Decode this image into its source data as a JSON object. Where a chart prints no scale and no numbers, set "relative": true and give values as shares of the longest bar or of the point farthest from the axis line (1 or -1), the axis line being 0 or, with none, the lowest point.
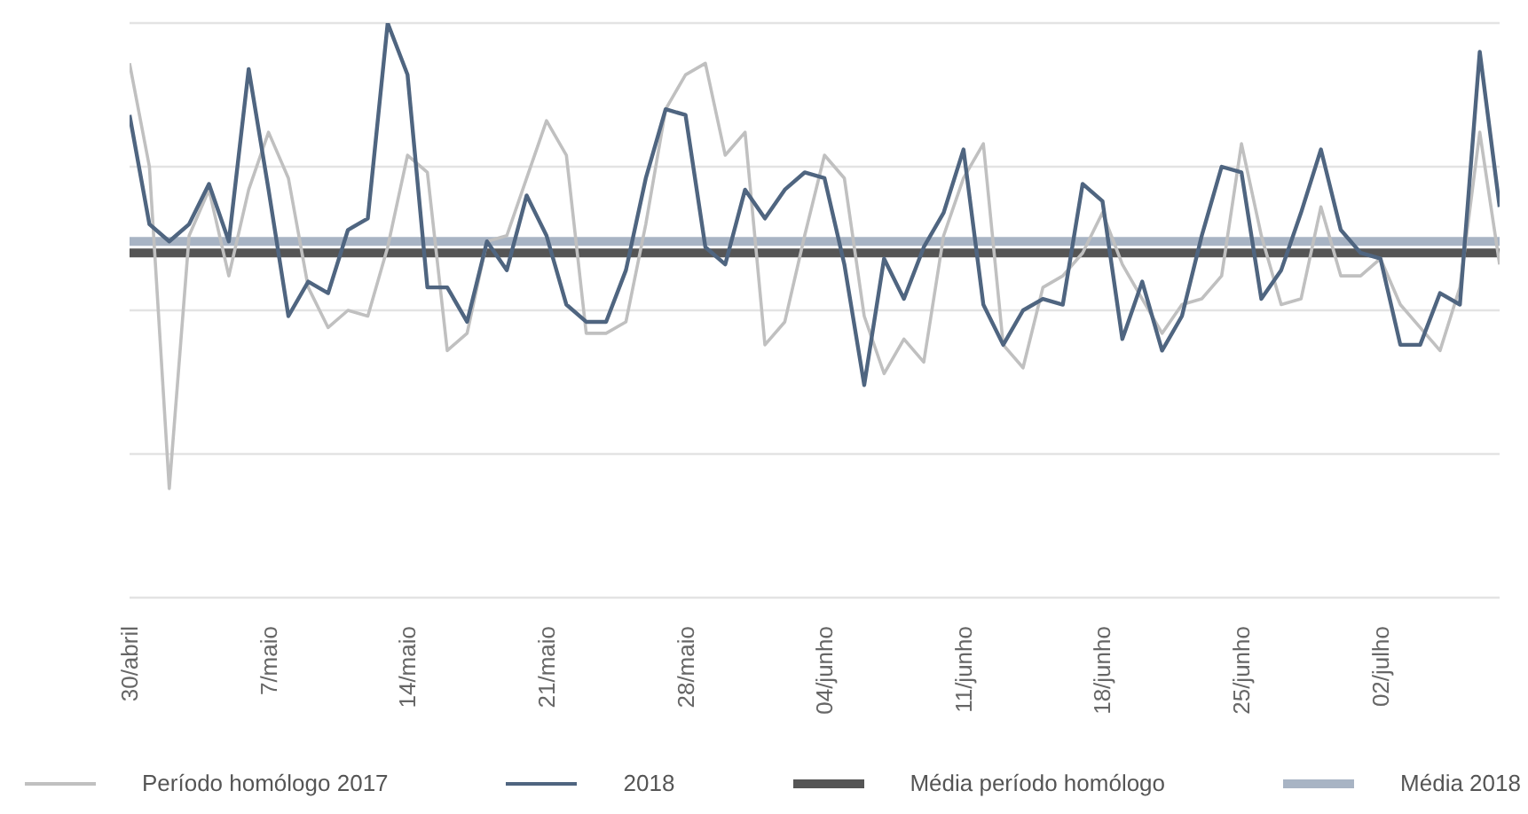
{
  "chart_data": {
    "type": "line",
    "relative": true,
    "grid": "y",
    "legend": "bottom",
    "marker": "none",
    "line_style": "solid",
    "categories": [
      "30/abril",
      null,
      null,
      null,
      null,
      null,
      null,
      "7/maio",
      null,
      null,
      null,
      null,
      null,
      null,
      "14/maio",
      null,
      null,
      null,
      null,
      null,
      null,
      "21/maio",
      null,
      null,
      null,
      null,
      null,
      null,
      "28/maio",
      null,
      null,
      null,
      null,
      null,
      null,
      "04/junho",
      null,
      null,
      null,
      null,
      null,
      null,
      "11/junho",
      null,
      null,
      null,
      null,
      null,
      null,
      "18/junho",
      null,
      null,
      null,
      null,
      null,
      null,
      "25/junho",
      null,
      null,
      null,
      null,
      null,
      null,
      "02/julho",
      null,
      null,
      null,
      null,
      null,
      null
    ],
    "series": [
      {
        "name": "Período homólogo 2017",
        "color": "#c0c0c0",
        "values": [
          0.93,
          0.75,
          0.19,
          0.63,
          0.71,
          0.56,
          0.71,
          0.81,
          0.73,
          0.54,
          0.47,
          0.5,
          0.49,
          0.61,
          0.77,
          0.74,
          0.43,
          0.46,
          0.62,
          0.63,
          0.73,
          0.83,
          0.77,
          0.46,
          0.46,
          0.48,
          0.65,
          0.85,
          0.91,
          0.93,
          0.77,
          0.81,
          0.44,
          0.48,
          0.63,
          0.77,
          0.73,
          0.49,
          0.39,
          0.45,
          0.41,
          0.63,
          0.73,
          0.79,
          0.44,
          0.4,
          0.54,
          0.56,
          0.6,
          0.67,
          0.58,
          0.52,
          0.46,
          0.51,
          0.52,
          0.56,
          0.79,
          0.63,
          0.51,
          0.52,
          0.68,
          0.56,
          0.56,
          0.59,
          0.51,
          0.47,
          0.43,
          0.54,
          0.81,
          0.58
        ]
      },
      {
        "name": "2018",
        "color": "#4f6580",
        "values": [
          0.84,
          0.65,
          0.62,
          0.65,
          0.72,
          0.62,
          0.92,
          0.71,
          0.49,
          0.55,
          0.53,
          0.64,
          0.66,
          1,
          0.91,
          0.54,
          0.54,
          0.48,
          0.62,
          0.57,
          0.7,
          0.63,
          0.51,
          0.48,
          0.48,
          0.57,
          0.73,
          0.85,
          0.84,
          0.61,
          0.58,
          0.71,
          0.66,
          0.71,
          0.74,
          0.73,
          0.58,
          0.37,
          0.59,
          0.52,
          0.61,
          0.67,
          0.78,
          0.51,
          0.44,
          0.5,
          0.52,
          0.51,
          0.72,
          0.69,
          0.45,
          0.55,
          0.43,
          0.49,
          0.63,
          0.75,
          0.74,
          0.52,
          0.57,
          0.67,
          0.78,
          0.64,
          0.6,
          0.59,
          0.44,
          0.44,
          0.53,
          0.51,
          0.95,
          0.68
        ]
      }
    ],
    "ref_lines": [
      {
        "axis": "y",
        "value": 0.6,
        "label": "Média período homólogo",
        "color": "#555555"
      },
      {
        "axis": "y",
        "value": 0.62,
        "label": "Média 2018",
        "color": "#a8b4c4"
      }
    ]
  }
}
